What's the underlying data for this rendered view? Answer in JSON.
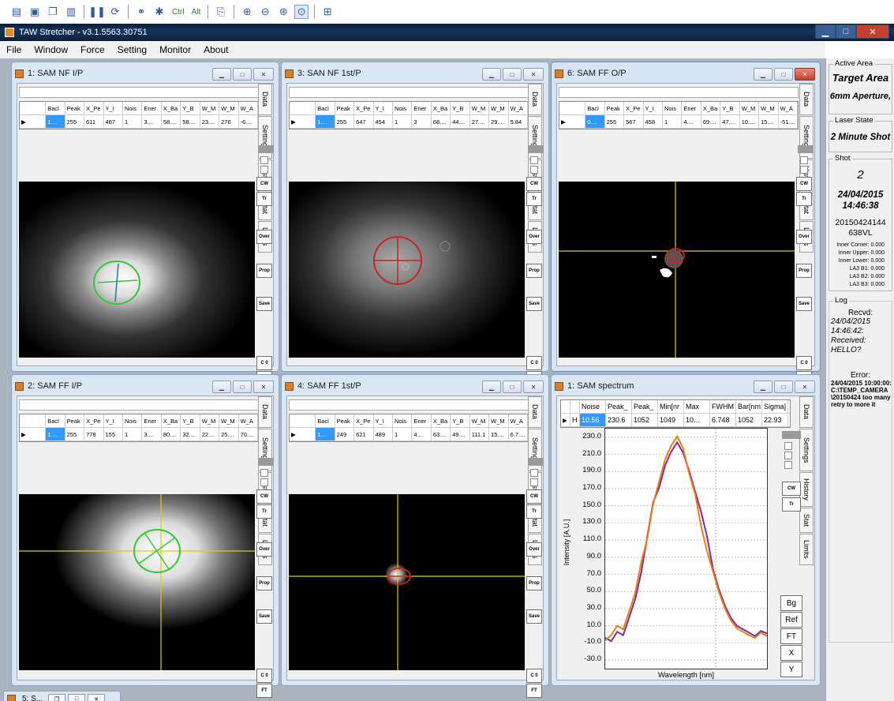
{
  "toolbar": {
    "ctrl_label": "Ctrl",
    "alt_label": "Alt"
  },
  "app": {
    "title": "TAW Stretcher - v3.1.5563.30751"
  },
  "menu": [
    "File",
    "Window",
    "Force",
    "Setting",
    "Monitor",
    "About"
  ],
  "windows": [
    {
      "title": "1: SAM NF I/P",
      "row": [
        "1....",
        "255",
        "611",
        "487",
        "1",
        "3....",
        "58....",
        "58....",
        "23....",
        "276",
        "-6...."
      ]
    },
    {
      "title": "3: SAN NF 1st/P",
      "row": [
        "1....",
        "255",
        "647",
        "454",
        "1",
        "3",
        "68....",
        "44....",
        "27....",
        "29....",
        "5.84"
      ]
    },
    {
      "title": "6: SAM FF O/P",
      "row": [
        "0....",
        "255",
        "567",
        "458",
        "1",
        "4....",
        "69....",
        "47....",
        "10....",
        "15....",
        "-51...."
      ]
    },
    {
      "title": "2: SAM FF I/P",
      "row": [
        "1....",
        "255",
        "778",
        "155",
        "1",
        "3....",
        "80....",
        "32....",
        "22....",
        "25....",
        "70...."
      ]
    },
    {
      "title": "4: SAM FF 1st/P",
      "row": [
        "1....",
        "249",
        "621",
        "489",
        "1",
        "4....",
        "63....",
        "49....",
        "111.1",
        "15....",
        "6.7...."
      ]
    }
  ],
  "grid_headers": [
    "Bacl",
    "Peak",
    "X_Pe",
    "Y_I",
    "Nois",
    "Ener",
    "X_Ba",
    "Y_B",
    "W_M",
    "W_M",
    "W_A"
  ],
  "side_tabs": {
    "data": "Data",
    "settings": "Settings",
    "history": "History",
    "stat": "Stat",
    "limits": "Limits"
  },
  "side_buttons": {
    "cw": "CW",
    "tr": "Tr",
    "over": "Over",
    "prop": "Prop",
    "save": "Save",
    "c0": "C 0",
    "ft": "FT"
  },
  "spectrum": {
    "title": "1: SAM spectrum",
    "headers": [
      "Noise",
      "Peak_",
      "Peak_",
      "Min[nr",
      "Max",
      "FWHM",
      "Bar[nm",
      "Sigma]"
    ],
    "row_label": "H",
    "row": [
      "10.56",
      "230.6",
      "1052",
      "1049",
      "10...",
      "6.748",
      "1052",
      "22.93"
    ],
    "buttons": {
      "bg": "Bg",
      "ref": "Ref",
      "ft": "FT",
      "x": "X",
      "y": "Y"
    }
  },
  "chart_data": {
    "type": "line",
    "title": "",
    "xlabel": "Wavelength [nm]",
    "ylabel": "Intensity [A.U.]",
    "ylim": [
      -40,
      240
    ],
    "yticks": [
      "230.0",
      "210.0",
      "190.0",
      "170.0",
      "150.0",
      "130.0",
      "110.0",
      "90.0",
      "70.0",
      "50.0",
      "30.0",
      "10.0",
      "-10.0",
      "-30.0"
    ],
    "grid": true,
    "series": [
      {
        "color": "#7b2d9e",
        "values": [
          0,
          -5,
          5,
          0,
          20,
          40,
          70,
          110,
          150,
          175,
          200,
          215,
          225,
          212,
          190,
          165,
          140,
          110,
          80,
          55,
          35,
          20,
          10,
          5,
          0,
          -5,
          0,
          5
        ]
      },
      {
        "color": "#f07a12",
        "values": [
          -5,
          0,
          10,
          5,
          25,
          45,
          80,
          115,
          155,
          180,
          205,
          220,
          230,
          215,
          185,
          160,
          130,
          100,
          75,
          50,
          30,
          15,
          5,
          0,
          -5,
          0,
          5,
          0
        ]
      }
    ]
  },
  "right_panel": {
    "active_area_label": "Active Area",
    "target_area": "Target Area",
    "aperture": "6mm Aperture,",
    "laser_state_label": "Laser State",
    "laser_state": "2 Minute Shot",
    "shot_label": "Shot",
    "shot_number": "2",
    "shot_datetime": "24/04/2015 14:46:38",
    "shot_id": "20150424144638VL",
    "values": [
      "Inner Corner: 0.000",
      "Inner Upper: 0.000",
      "Inner Lower: 0.000",
      "LA3 B1: 0.000",
      "LA3 B2: 0.000",
      "LA3 B3: 0.000"
    ],
    "log_label": "Log",
    "log_recvd": "Recvd:",
    "log_text": "24/04/2015 14:46:42: Received: HELLO?",
    "error_label": "Error:",
    "error_text": "24/04/2015 10:00:00: C:\\TEMP_CAMERA \\20150424 too many retry to more it"
  },
  "minimized": {
    "title": "5: S..."
  }
}
